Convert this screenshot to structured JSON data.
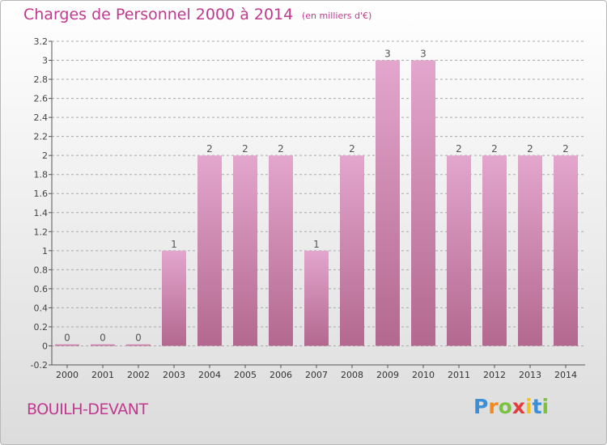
{
  "title": "Charges de Personnel 2000 à 2014",
  "unit_note": "(en milliers d'€)",
  "commune": "BOUILH-DEVANT",
  "logo": {
    "letters": [
      "P",
      "r",
      "o",
      "x",
      "i",
      "t",
      "i"
    ],
    "colors": [
      "#3a8fd6",
      "#f08a1c",
      "#7cc242",
      "#e23d3d",
      "#f3c21c",
      "#3a8fd6",
      "#7cc242"
    ]
  },
  "colors": {
    "bar_top": "#e3a6cd",
    "bar_bottom": "#b3688f",
    "title": "#c0398e",
    "grid": "#a9a9a9"
  },
  "chart_data": {
    "type": "bar",
    "title": "Charges de Personnel 2000 à 2014",
    "categories": [
      "2000",
      "2001",
      "2002",
      "2003",
      "2004",
      "2005",
      "2006",
      "2007",
      "2008",
      "2009",
      "2010",
      "2011",
      "2012",
      "2013",
      "2014"
    ],
    "values": [
      0,
      0,
      0,
      1,
      2,
      2,
      2,
      1,
      2,
      3,
      3,
      2,
      2,
      2,
      2
    ],
    "data_labels": [
      "0",
      "0",
      "0",
      "1",
      "2",
      "2",
      "2",
      "1",
      "2",
      "3",
      "3",
      "2",
      "2",
      "2",
      "2"
    ],
    "y_ticks": [
      3.2,
      3,
      2.8,
      2.6,
      2.4,
      2.2,
      2,
      1.8,
      1.6,
      1.4,
      1.2,
      1,
      0.8,
      0.6,
      0.4,
      0.2,
      0,
      -0.2
    ],
    "y_tick_labels": [
      "3.2",
      "3",
      "2.8",
      "2.6",
      "2.4",
      "2.2",
      "2",
      "1.8",
      "1.6",
      "1.4",
      "1.2",
      "1",
      "0.8",
      "0.6",
      "0.4",
      "0.2",
      "0",
      "-0.2"
    ],
    "ylim": [
      -0.2,
      3.2
    ],
    "grid": "horizontal dashed",
    "xlabel": "",
    "ylabel": ""
  }
}
